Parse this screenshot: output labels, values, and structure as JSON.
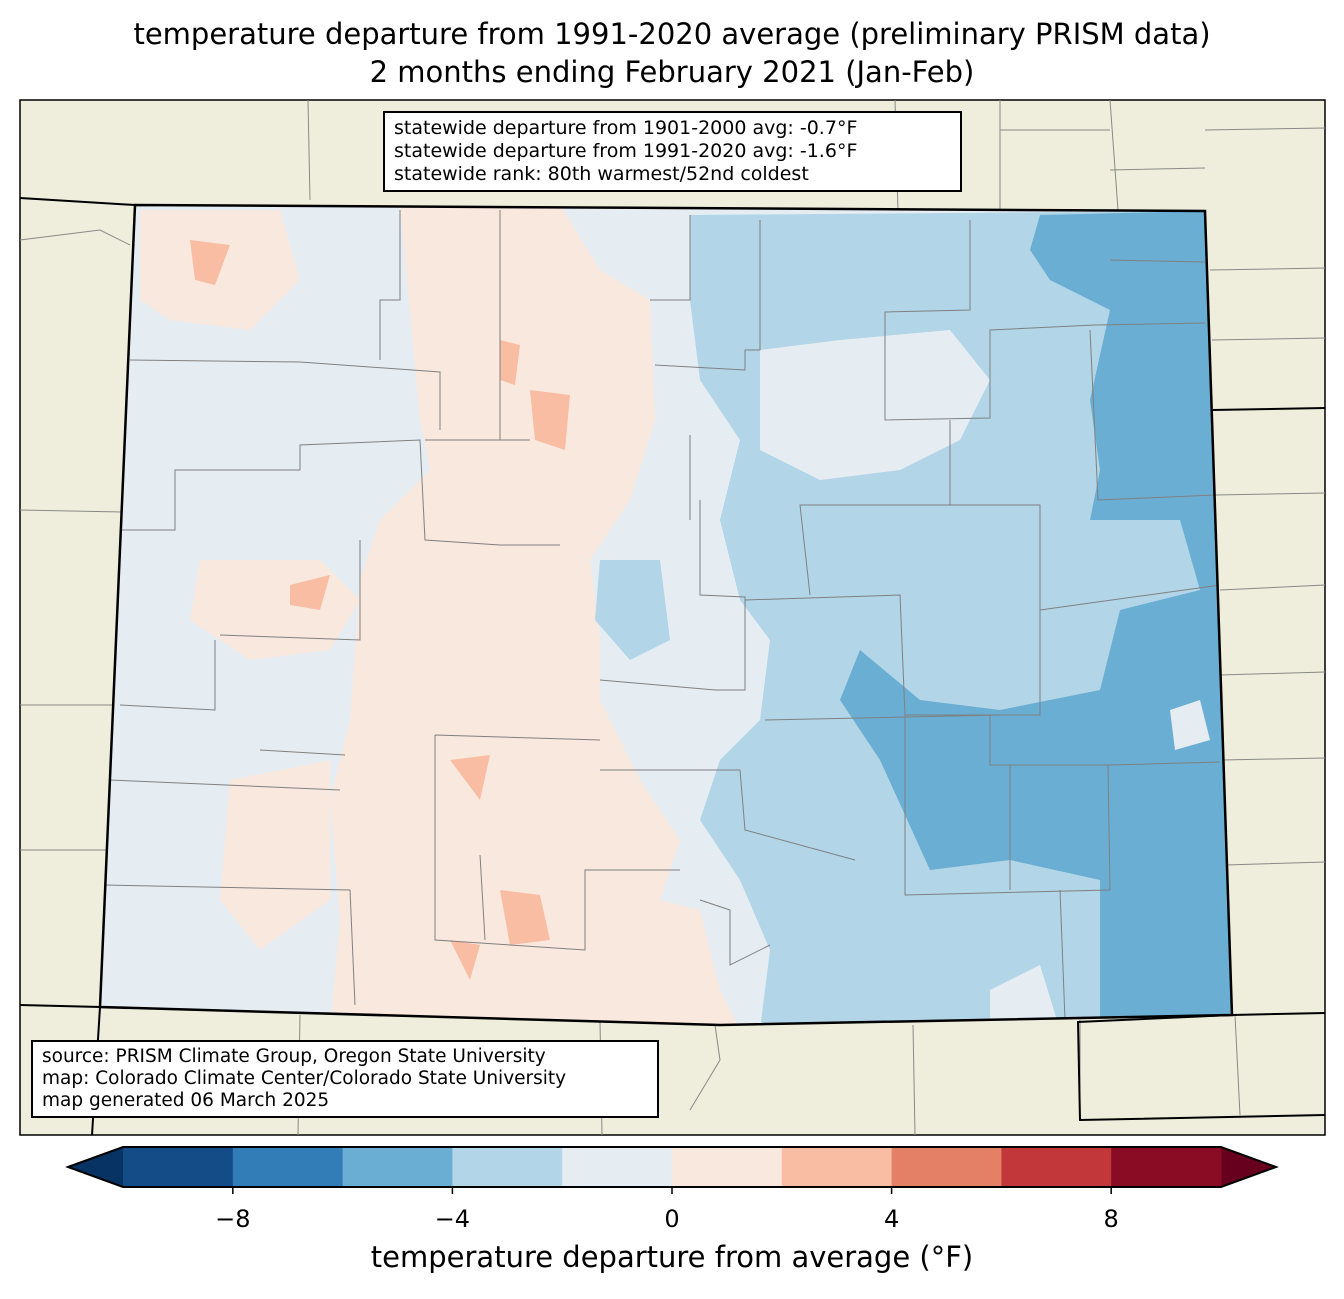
{
  "title": {
    "line1": "temperature departure from 1991-2020 average (preliminary PRISM data)",
    "line2": "2 months ending February 2021 (Jan-Feb)"
  },
  "stats": {
    "line1": "statewide departure from 1901-2000 avg: -0.7°F",
    "line2": "statewide departure from 1991-2020 avg: -1.6°F",
    "line3": "statewide rank: 80th warmest/52nd coldest"
  },
  "source": {
    "line1": "source: PRISM Climate Group, Oregon State University",
    "line2": "map: Colorado Climate Center/Colorado State University",
    "line3": "map generated 06 March 2025"
  },
  "colorbar": {
    "label": "temperature departure from average (°F)",
    "levels": [
      -10,
      -8,
      -6,
      -4,
      -2,
      0,
      2,
      4,
      6,
      8,
      10
    ],
    "colors": [
      "#144c87",
      "#327cb8",
      "#6aaed3",
      "#b2d5e7",
      "#e5edf3",
      "#f9e8de",
      "#f9bda3",
      "#e48066",
      "#c2383a",
      "#890b24"
    ],
    "under_color": "#063264",
    "over_color": "#67001f",
    "ticks": [
      {
        "v": -8,
        "label": "−8"
      },
      {
        "v": -4,
        "label": "−4"
      },
      {
        "v": 0,
        "label": "0"
      },
      {
        "v": 4,
        "label": "4"
      },
      {
        "v": 8,
        "label": "8"
      }
    ]
  },
  "map": {
    "background_color": "#efeedc",
    "state": "Colorado"
  }
}
